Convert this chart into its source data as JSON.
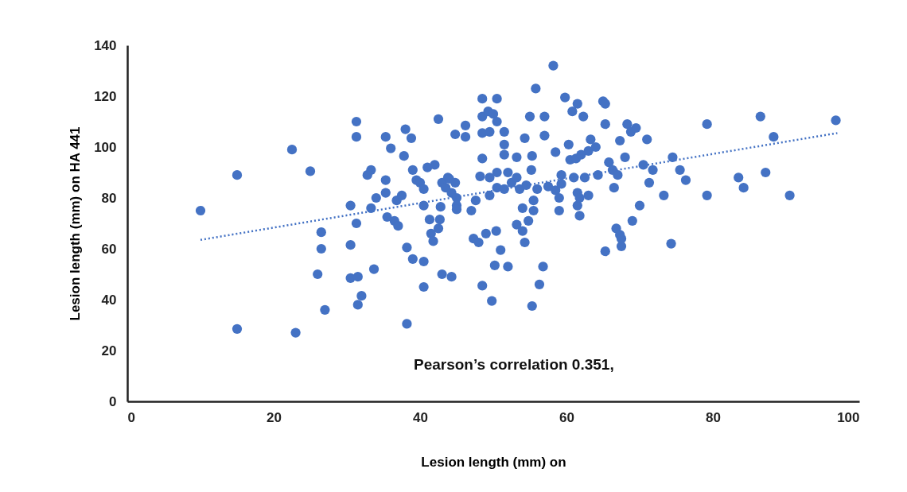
{
  "chart_data": {
    "type": "scatter",
    "xlabel": "Lesion length (mm) on",
    "ylabel": "Lesion length (mm) on HA 441",
    "annotations": [
      "Pearson’s correlation 0.351,"
    ],
    "xlim": [
      0,
      100
    ],
    "xticks": [
      0,
      20,
      40,
      60,
      80,
      100
    ],
    "ylim": [
      0,
      140
    ],
    "yticks": [
      0,
      20,
      40,
      60,
      80,
      100,
      120,
      140
    ],
    "marker": "circle",
    "series": [
      {
        "color": "#4472c4",
        "x": [
          10,
          15,
          15,
          22.5,
          25,
          23,
          26,
          26.5,
          26.5,
          27,
          30.5,
          30.5,
          30.5,
          31.3,
          31.3,
          31.3,
          31.5,
          31.5,
          32,
          32.8,
          33.3,
          33.3,
          33.7,
          34,
          35.3,
          35.3,
          35.3,
          35.5,
          36,
          36.5,
          36.8,
          37,
          37.5,
          37.8,
          38,
          38.2,
          38.2,
          38.8,
          39,
          39,
          39.5,
          40,
          40.5,
          40.5,
          40.5,
          40.5,
          41,
          41.3,
          41.5,
          41.8,
          42,
          42.5,
          42.5,
          42.7,
          42.8,
          43,
          43,
          43.5,
          43.8,
          44,
          44.3,
          44.3,
          44.8,
          44.8,
          45,
          45,
          45,
          46.2,
          46.2,
          47,
          47.3,
          47.6,
          48,
          48.2,
          48.5,
          48.5,
          48.5,
          48.5,
          48.5,
          49,
          49.3,
          49.5,
          49.5,
          49.5,
          49.8,
          50,
          50.2,
          50.4,
          50.5,
          50.5,
          50.5,
          50.5,
          51,
          51.5,
          51.5,
          51.5,
          51.5,
          52,
          52,
          52.5,
          53.2,
          53.2,
          53.2,
          53.6,
          54,
          54,
          54.3,
          54.3,
          54.5,
          54.8,
          55.2,
          55,
          55.3,
          55.5,
          55.3,
          55.5,
          55.8,
          56,
          56.3,
          56.8,
          57,
          57,
          57.5,
          58.2,
          58.5,
          58.5,
          59,
          59,
          59.3,
          59.3,
          59.8,
          60.3,
          60.5,
          60.8,
          61,
          61.3,
          61.5,
          61.5,
          61.5,
          61.8,
          61.8,
          62,
          62.3,
          62.5,
          63,
          63,
          63.3,
          64,
          64.3,
          65,
          65.3,
          65.3,
          65.3,
          65.8,
          66.3,
          66.5,
          66.8,
          67,
          67.3,
          67.3,
          67.5,
          67.5,
          68,
          68.3,
          68.8,
          69,
          69.5,
          70,
          70.5,
          71,
          71.3,
          71.8,
          73.3,
          74.3,
          74.5,
          75.5,
          76.3,
          79.2,
          79.2,
          83.5,
          84.2,
          86.5,
          87.2,
          88.3,
          90.5,
          96.8
        ],
        "values": [
          75,
          89,
          28.5,
          99,
          90.5,
          27,
          50,
          60,
          66.5,
          36,
          61.5,
          77,
          48.5,
          110,
          104,
          70,
          49,
          38,
          41.5,
          89,
          91,
          76,
          52,
          80,
          104,
          87,
          82,
          72.5,
          99.5,
          71,
          79,
          69,
          81,
          96.5,
          107,
          60.5,
          30.5,
          103.5,
          91,
          56,
          87,
          86,
          83.5,
          77,
          55,
          45,
          92,
          71.5,
          66,
          63,
          93,
          68,
          111,
          71.5,
          76.5,
          50,
          86,
          84,
          88,
          87.5,
          82,
          49,
          105,
          86,
          80,
          77,
          75.5,
          108.5,
          104,
          75,
          64,
          79,
          62.5,
          88.5,
          119,
          112,
          105.5,
          95.5,
          45.5,
          66,
          114,
          106,
          88,
          81,
          39.5,
          113,
          53.5,
          67,
          119,
          110,
          90,
          84,
          59.5,
          106,
          101,
          97,
          83.5,
          90,
          53,
          86,
          96,
          88,
          69.5,
          83.5,
          76,
          67,
          62.5,
          103.5,
          85,
          71,
          91,
          112,
          96.5,
          75,
          37.5,
          79,
          123,
          83.5,
          46,
          53,
          112,
          104.5,
          84.5,
          132,
          98,
          83,
          75,
          80,
          89,
          85.5,
          119.5,
          101,
          95,
          114,
          88,
          95.5,
          117,
          82,
          77,
          80,
          73,
          97,
          112,
          88,
          98.5,
          81,
          103,
          100,
          89,
          118,
          117,
          109,
          59,
          94,
          91,
          84,
          68,
          89,
          65.5,
          102.5,
          61,
          64,
          96,
          109,
          106,
          71,
          107.5,
          77,
          93,
          103,
          86,
          91,
          81,
          62,
          96,
          91,
          87,
          109,
          81,
          88,
          84,
          112,
          90,
          104,
          81,
          110.5
        ]
      },
      {
        "type": "line",
        "color": "#4472c4",
        "line_style": "dotted",
        "marker": "none",
        "x": [
          10,
          97
        ],
        "values": [
          63.5,
          105.5
        ]
      }
    ]
  }
}
